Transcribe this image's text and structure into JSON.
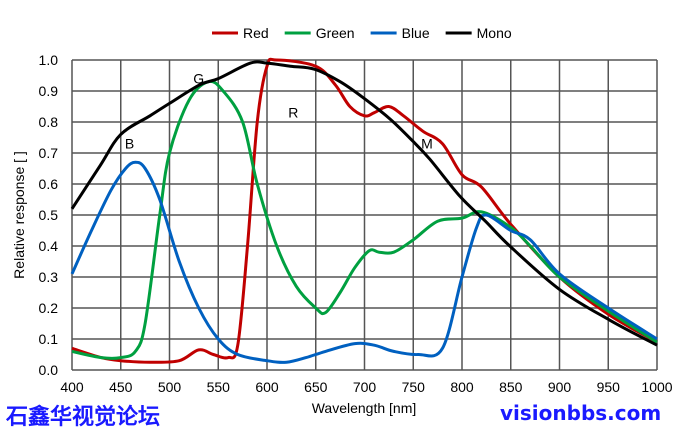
{
  "chart_data": {
    "type": "line",
    "title": "",
    "xlabel": "Wavelength [nm]",
    "ylabel": "Relative response [ ]",
    "xlim": [
      400,
      1000
    ],
    "ylim": [
      0,
      1.0
    ],
    "xticks": [
      400,
      450,
      500,
      550,
      600,
      650,
      700,
      750,
      800,
      850,
      900,
      950,
      1000
    ],
    "yticks": [
      "0.0",
      "0.1",
      "0.2",
      "0.3",
      "0.4",
      "0.5",
      "0.6",
      "0.7",
      "0.8",
      "0.9",
      "1.0"
    ],
    "grid": true,
    "legend_position": "top-center",
    "series": [
      {
        "name": "Red",
        "color": "#c00000",
        "x": [
          400,
          430,
          450,
          480,
          510,
          530,
          545,
          560,
          570,
          580,
          590,
          600,
          610,
          650,
          670,
          685,
          700,
          710,
          725,
          740,
          760,
          780,
          800,
          820,
          850,
          900,
          950,
          1000
        ],
        "y": [
          0.07,
          0.04,
          0.03,
          0.025,
          0.03,
          0.065,
          0.05,
          0.04,
          0.08,
          0.4,
          0.8,
          0.98,
          1.0,
          0.98,
          0.92,
          0.85,
          0.82,
          0.83,
          0.85,
          0.82,
          0.77,
          0.73,
          0.63,
          0.59,
          0.47,
          0.3,
          0.18,
          0.09
        ]
      },
      {
        "name": "Green",
        "color": "#00a040",
        "x": [
          400,
          430,
          450,
          465,
          475,
          490,
          500,
          520,
          540,
          555,
          575,
          590,
          610,
          630,
          650,
          660,
          675,
          690,
          705,
          715,
          730,
          750,
          775,
          800,
          820,
          850,
          870,
          900,
          950,
          1000
        ],
        "y": [
          0.06,
          0.04,
          0.04,
          0.06,
          0.15,
          0.5,
          0.7,
          0.87,
          0.93,
          0.9,
          0.8,
          0.6,
          0.4,
          0.27,
          0.2,
          0.185,
          0.25,
          0.33,
          0.385,
          0.38,
          0.38,
          0.42,
          0.48,
          0.49,
          0.51,
          0.46,
          0.4,
          0.3,
          0.19,
          0.09
        ]
      },
      {
        "name": "Blue",
        "color": "#0060c0",
        "x": [
          400,
          420,
          440,
          455,
          465,
          475,
          490,
          510,
          530,
          550,
          570,
          600,
          620,
          640,
          660,
          690,
          710,
          730,
          755,
          780,
          800,
          815,
          825,
          850,
          870,
          900,
          950,
          1000
        ],
        "y": [
          0.31,
          0.45,
          0.58,
          0.65,
          0.67,
          0.65,
          0.55,
          0.35,
          0.2,
          0.1,
          0.05,
          0.03,
          0.025,
          0.04,
          0.06,
          0.085,
          0.08,
          0.06,
          0.05,
          0.07,
          0.3,
          0.46,
          0.5,
          0.45,
          0.42,
          0.31,
          0.2,
          0.1
        ]
      },
      {
        "name": "Mono",
        "color": "#000000",
        "x": [
          400,
          429,
          450,
          480,
          500,
          531,
          550,
          583,
          600,
          624,
          649,
          675,
          698,
          726,
          749,
          767,
          798,
          824,
          849,
          900,
          952,
          1000
        ],
        "y": [
          0.52,
          0.66,
          0.76,
          0.82,
          0.86,
          0.92,
          0.94,
          0.99,
          0.99,
          0.98,
          0.97,
          0.93,
          0.88,
          0.81,
          0.74,
          0.68,
          0.56,
          0.48,
          0.4,
          0.26,
          0.16,
          0.08
        ]
      }
    ],
    "annotations": [
      {
        "text": "B",
        "x": 459,
        "y": 0.73
      },
      {
        "text": "G",
        "x": 530,
        "y": 0.94
      },
      {
        "text": "R",
        "x": 627,
        "y": 0.83
      },
      {
        "text": "M",
        "x": 764,
        "y": 0.73
      }
    ]
  },
  "watermark": {
    "line1": "石鑫华视觉论坛",
    "line2": "visionbbs.com"
  }
}
